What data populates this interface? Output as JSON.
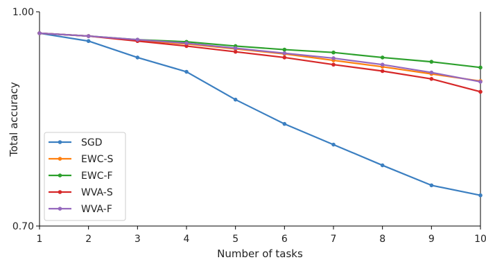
{
  "chart_data": {
    "type": "line",
    "xlabel": "Number of tasks",
    "ylabel": "Total accuracy",
    "xlim": [
      1,
      10
    ],
    "ylim": [
      0.7,
      1.0
    ],
    "x": [
      1,
      2,
      3,
      4,
      5,
      6,
      7,
      8,
      9,
      10
    ],
    "x_tick_labels": [
      "1",
      "2",
      "3",
      "4",
      "5",
      "6",
      "7",
      "8",
      "9",
      "10"
    ],
    "y_ticks": [
      0.7,
      1.0
    ],
    "y_tick_labels": [
      "0.70",
      "1.00"
    ],
    "grid": false,
    "legend_position": "lower-left",
    "series": [
      {
        "name": "SGD",
        "color": "#3b7fc1",
        "values": [
          0.97,
          0.959,
          0.936,
          0.916,
          0.877,
          0.843,
          0.814,
          0.785,
          0.757,
          0.743
        ]
      },
      {
        "name": "EWC-S",
        "color": "#ff7f0e",
        "values": [
          0.97,
          0.966,
          0.96,
          0.955,
          0.948,
          0.941,
          0.932,
          0.923,
          0.913,
          0.903
        ]
      },
      {
        "name": "EWC-F",
        "color": "#2ca02c",
        "values": [
          0.97,
          0.966,
          0.961,
          0.958,
          0.952,
          0.947,
          0.943,
          0.936,
          0.93,
          0.922
        ]
      },
      {
        "name": "WVA-S",
        "color": "#d62728",
        "values": [
          0.97,
          0.966,
          0.959,
          0.952,
          0.944,
          0.936,
          0.926,
          0.917,
          0.906,
          0.888
        ]
      },
      {
        "name": "WVA-F",
        "color": "#9467bd",
        "values": [
          0.97,
          0.966,
          0.961,
          0.956,
          0.949,
          0.942,
          0.935,
          0.926,
          0.915,
          0.902
        ]
      }
    ]
  }
}
